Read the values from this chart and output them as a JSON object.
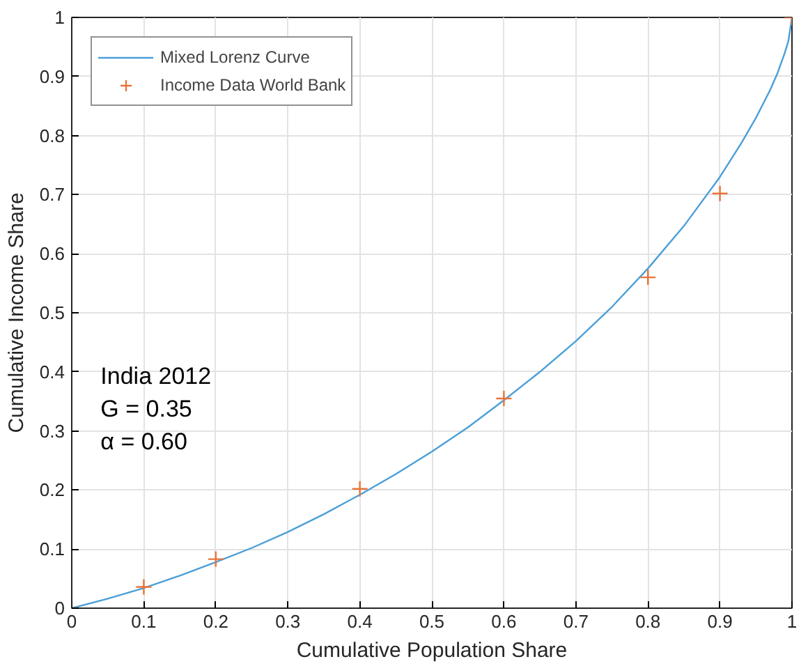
{
  "chart_data": {
    "type": "line",
    "xlabel": "Cumulative Population Share",
    "ylabel": "Cumulative Income Share",
    "xlim": [
      0,
      1
    ],
    "ylim": [
      0,
      1
    ],
    "xticks": [
      0,
      0.1,
      0.2,
      0.3,
      0.4,
      0.5,
      0.6,
      0.7,
      0.8,
      0.9,
      1
    ],
    "yticks": [
      0,
      0.1,
      0.2,
      0.3,
      0.4,
      0.5,
      0.6,
      0.7,
      0.8,
      0.9,
      1
    ],
    "grid": true,
    "legend": "top left",
    "annotations": [
      "India 2012",
      "G = 0.35",
      "α = 0.60"
    ],
    "series": [
      {
        "name": "Mixed Lorenz Curve",
        "color": "#4a9fd8",
        "marker": "none",
        "line_style": "solid",
        "x": [
          0,
          0.05,
          0.1,
          0.15,
          0.2,
          0.25,
          0.3,
          0.35,
          0.4,
          0.45,
          0.5,
          0.55,
          0.6,
          0.65,
          0.7,
          0.75,
          0.8,
          0.85,
          0.9,
          0.93,
          0.95,
          0.97,
          0.98,
          0.99,
          0.995,
          1
        ],
        "values": [
          0,
          0.016,
          0.034,
          0.055,
          0.078,
          0.102,
          0.129,
          0.159,
          0.192,
          0.227,
          0.265,
          0.306,
          0.352,
          0.4,
          0.452,
          0.51,
          0.575,
          0.647,
          0.73,
          0.788,
          0.83,
          0.878,
          0.906,
          0.94,
          0.96,
          1
        ]
      },
      {
        "name": "Income Data World Bank",
        "type": "scatter",
        "color": "#e8743b",
        "marker": "cross",
        "x": [
          0,
          0.1,
          0.2,
          0.4,
          0.6,
          0.8,
          0.9,
          1
        ],
        "values": [
          0,
          0.036,
          0.083,
          0.202,
          0.355,
          0.56,
          0.702,
          1
        ]
      }
    ]
  }
}
